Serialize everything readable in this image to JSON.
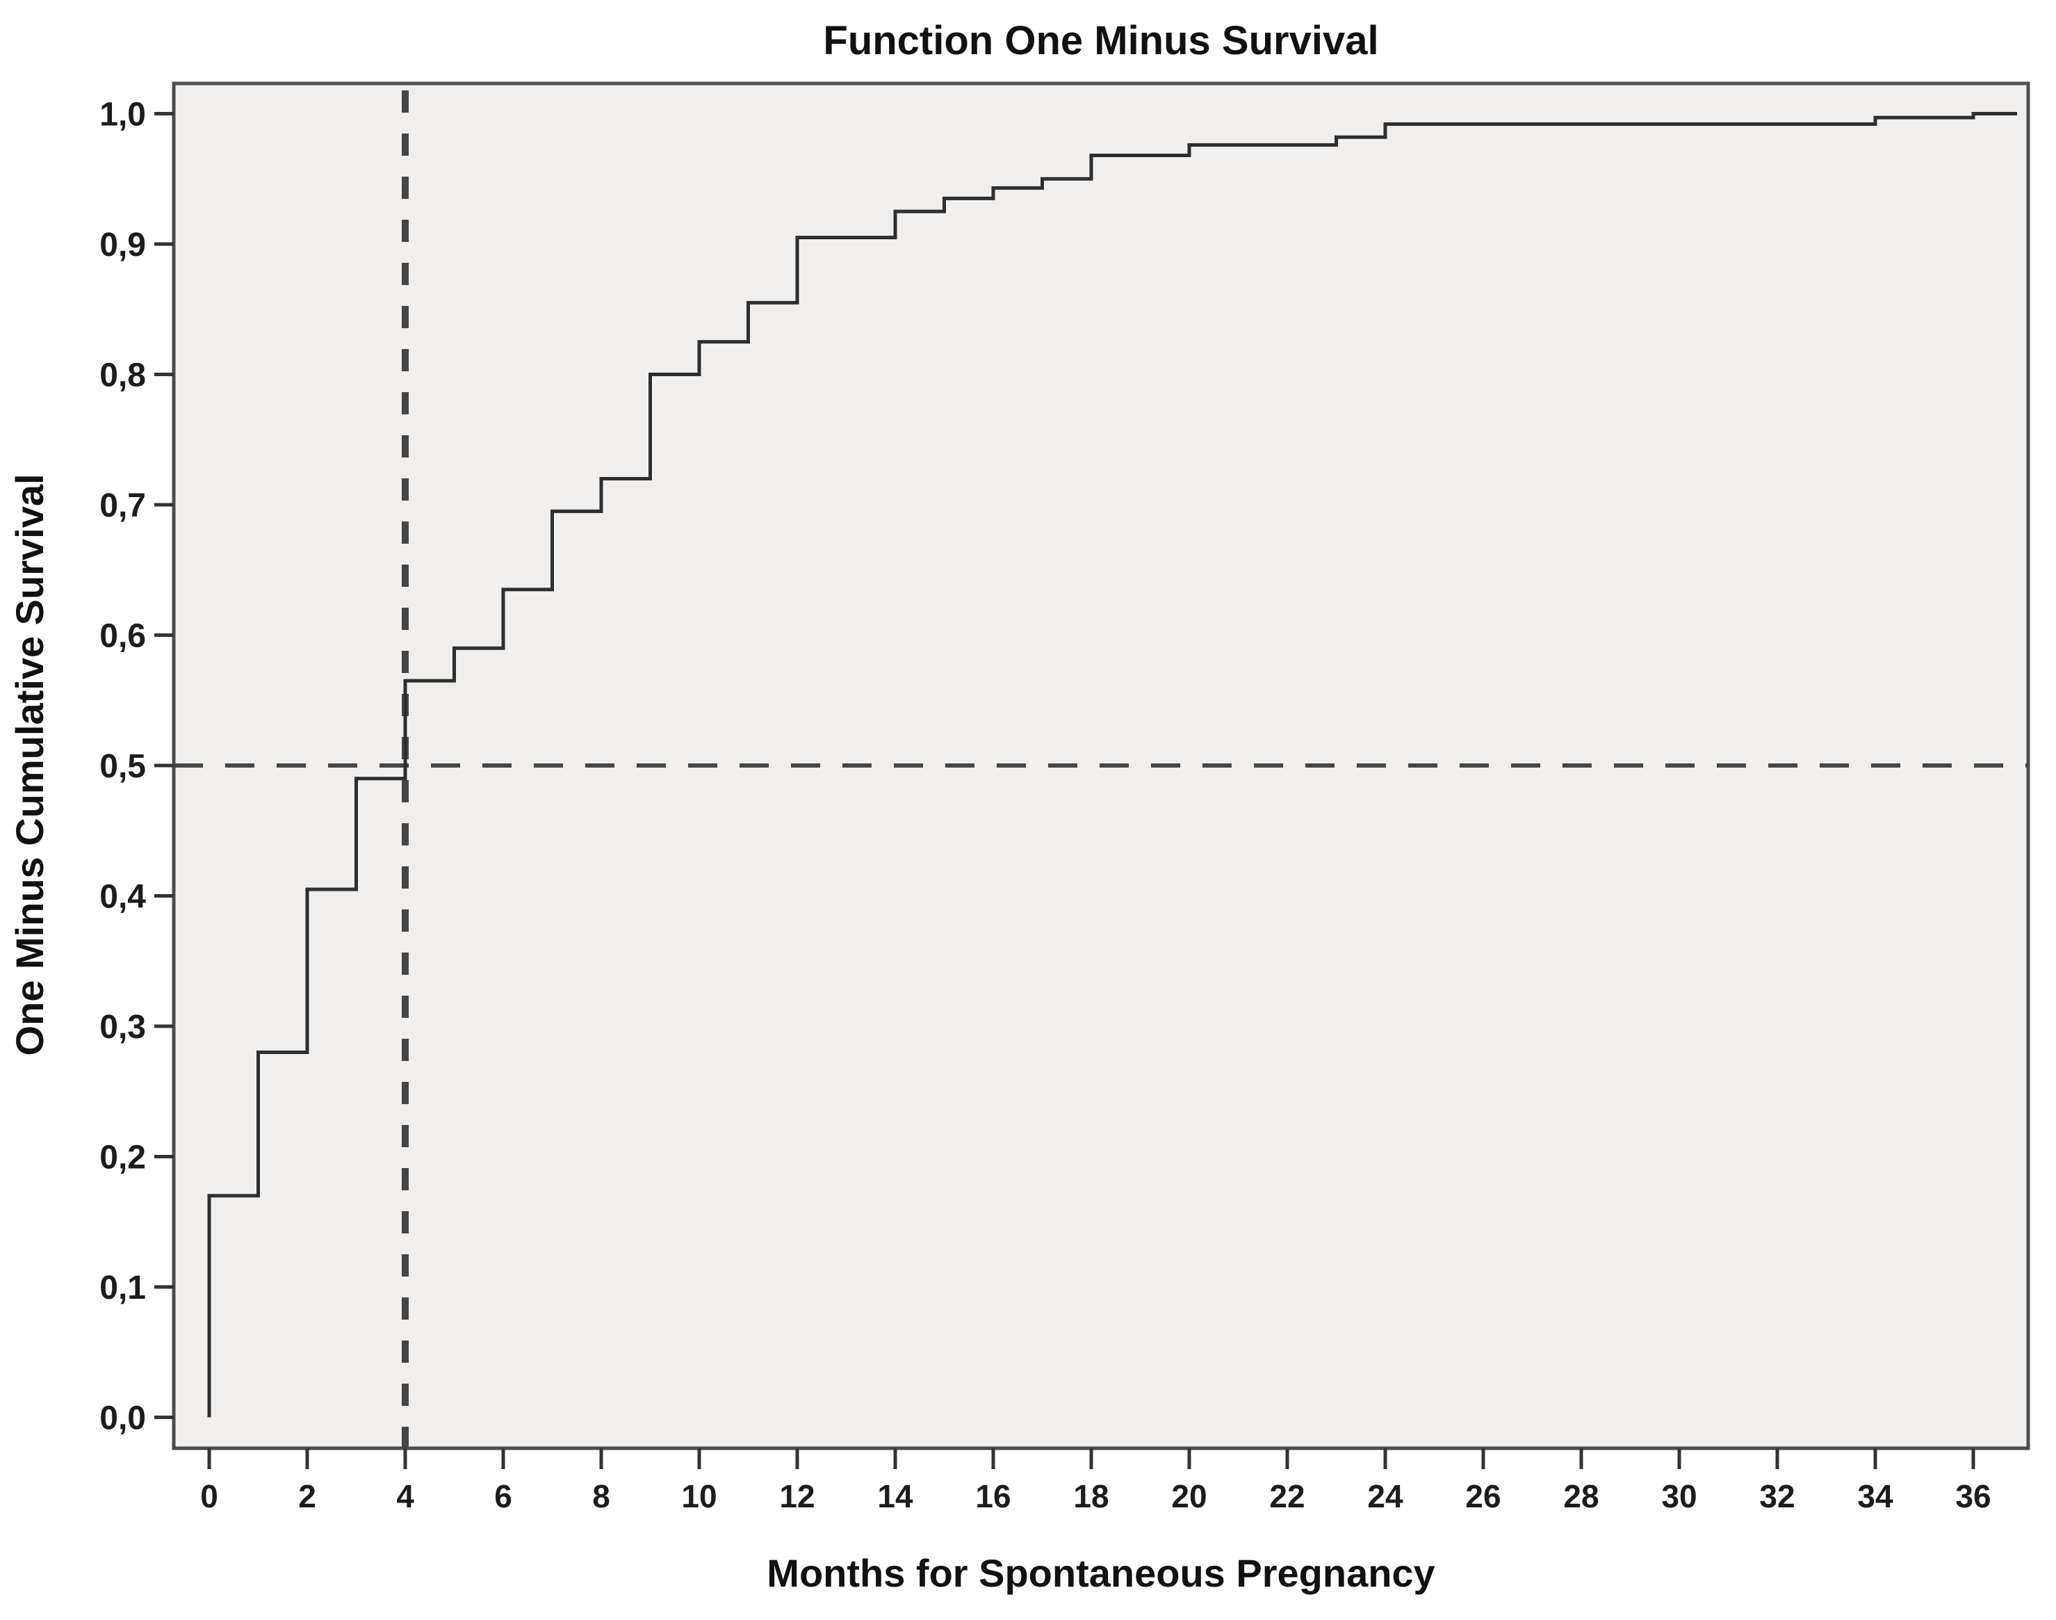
{
  "title": "Function One Minus Survival",
  "chart_data": {
    "type": "line",
    "subtype": "step",
    "title": "Function One Minus Survival",
    "xlabel": "Months for Spontaneous Pregnancy",
    "ylabel": "One Minus Cumulative Survival",
    "xlim": [
      0,
      36
    ],
    "ylim": [
      0.0,
      1.0
    ],
    "grid": false,
    "legend": null,
    "decimal_separator": ",",
    "x_ticks": [
      0,
      2,
      4,
      6,
      8,
      10,
      12,
      14,
      16,
      18,
      20,
      22,
      24,
      26,
      28,
      30,
      32,
      34,
      36
    ],
    "y_ticks": [
      {
        "v": 0.0,
        "label": "0,0"
      },
      {
        "v": 0.1,
        "label": "0,1"
      },
      {
        "v": 0.2,
        "label": "0,2"
      },
      {
        "v": 0.3,
        "label": "0,3"
      },
      {
        "v": 0.4,
        "label": "0,4"
      },
      {
        "v": 0.5,
        "label": "0,5"
      },
      {
        "v": 0.6,
        "label": "0,6"
      },
      {
        "v": 0.7,
        "label": "0,7"
      },
      {
        "v": 0.8,
        "label": "0,8"
      },
      {
        "v": 0.9,
        "label": "0,9"
      },
      {
        "v": 1.0,
        "label": "1,0"
      }
    ],
    "series": [
      {
        "name": "One Minus Cumulative Survival",
        "start": {
          "x": 0,
          "y": 0.0
        },
        "steps": [
          {
            "x": 0,
            "y": 0.17
          },
          {
            "x": 1,
            "y": 0.28
          },
          {
            "x": 2,
            "y": 0.405
          },
          {
            "x": 3,
            "y": 0.49
          },
          {
            "x": 4,
            "y": 0.565
          },
          {
            "x": 5,
            "y": 0.59
          },
          {
            "x": 6,
            "y": 0.635
          },
          {
            "x": 7,
            "y": 0.695
          },
          {
            "x": 8,
            "y": 0.72
          },
          {
            "x": 9,
            "y": 0.8
          },
          {
            "x": 10,
            "y": 0.825
          },
          {
            "x": 11,
            "y": 0.855
          },
          {
            "x": 12,
            "y": 0.905
          },
          {
            "x": 14,
            "y": 0.925
          },
          {
            "x": 15,
            "y": 0.935
          },
          {
            "x": 16,
            "y": 0.943
          },
          {
            "x": 17,
            "y": 0.95
          },
          {
            "x": 18,
            "y": 0.968
          },
          {
            "x": 20,
            "y": 0.976
          },
          {
            "x": 23,
            "y": 0.982
          },
          {
            "x": 24,
            "y": 0.992
          },
          {
            "x": 34,
            "y": 0.997
          },
          {
            "x": 36,
            "y": 1.0
          }
        ]
      }
    ],
    "reference_lines": {
      "vertical_x": 4,
      "horizontal_y": 0.5,
      "style": "dashed",
      "meaning": "median months to spontaneous pregnancy"
    },
    "colors": {
      "plot_background": "#f0efed",
      "outer_background": "#ffffff",
      "frame": "#4d4d4d",
      "curve": "#2e2e2e",
      "reference_line": "#454545",
      "tick": "#333333",
      "text": "#111111"
    }
  }
}
